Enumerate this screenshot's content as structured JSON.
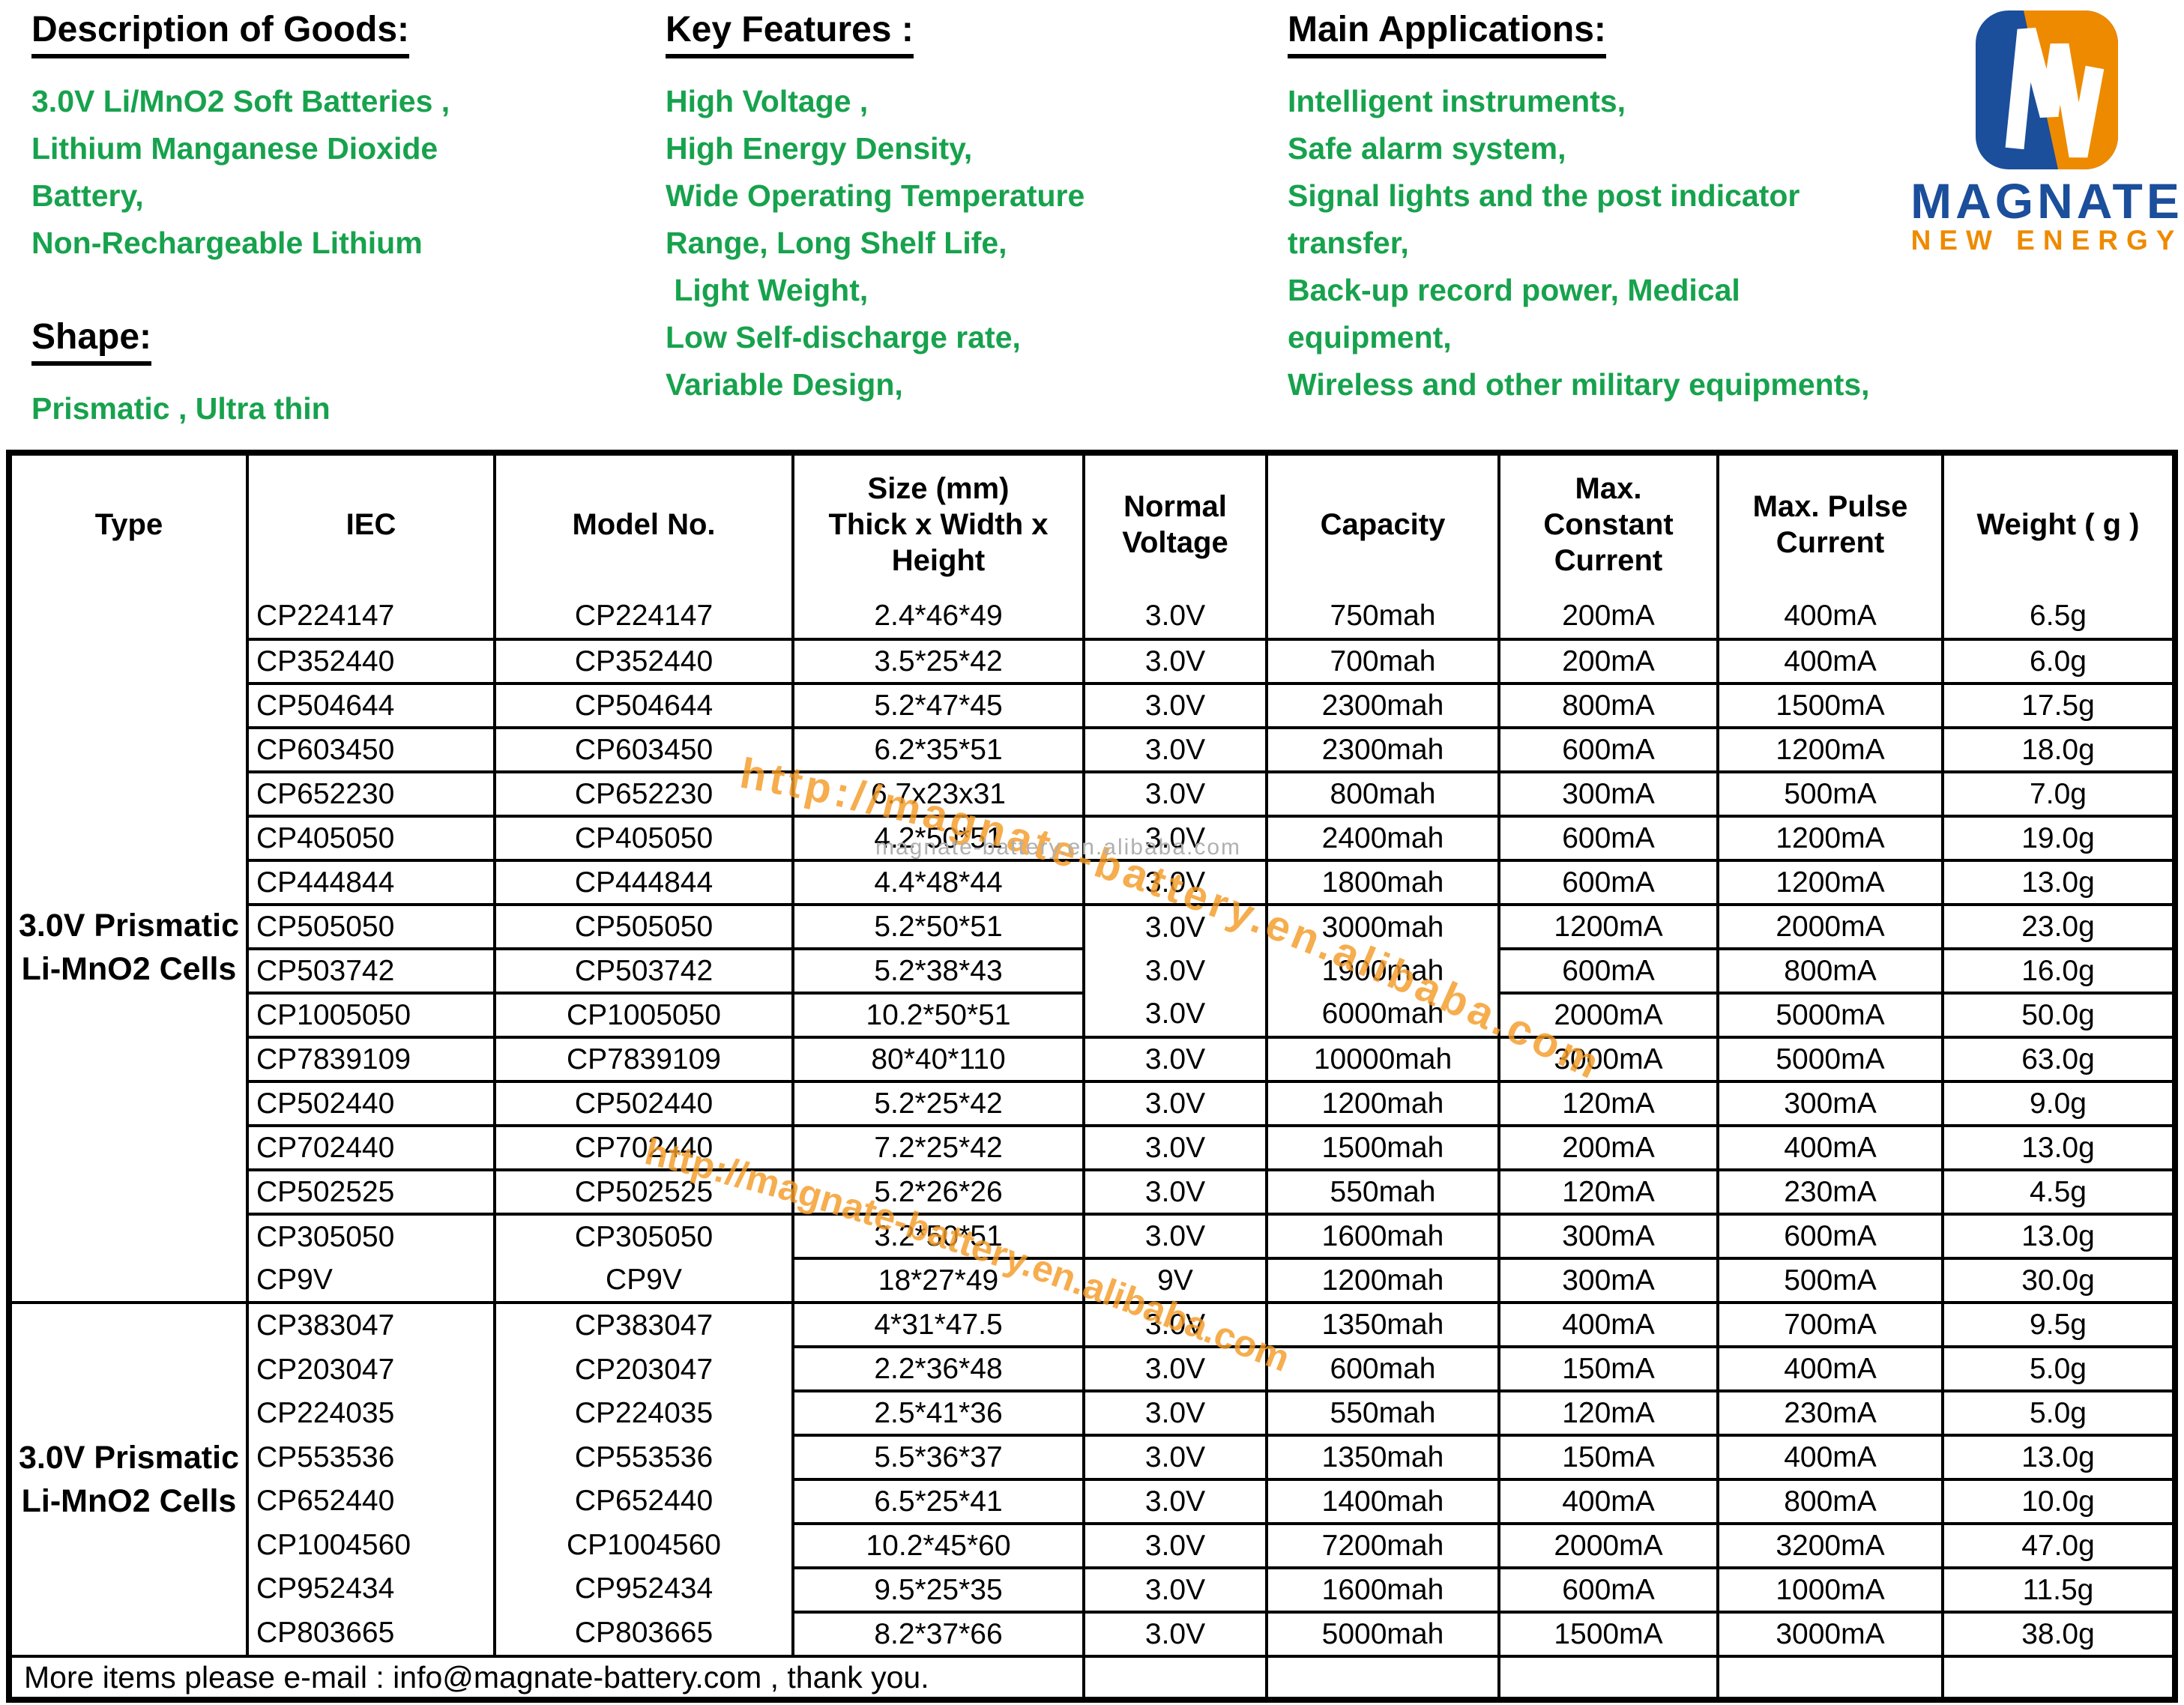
{
  "header": {
    "description": {
      "title": "Description of Goods:",
      "lines": [
        "3.0V Li/MnO2 Soft Batteries ,",
        "Lithium Manganese Dioxide",
        "Battery,",
        "Non-Rechargeable Lithium"
      ]
    },
    "shape": {
      "title": "Shape:",
      "lines": [
        "Prismatic , Ultra thin"
      ]
    },
    "features": {
      "title": "Key Features :",
      "lines": [
        "High Voltage ,",
        "High Energy Density,",
        "Wide Operating Temperature",
        "Range, Long Shelf Life,",
        " Light Weight,",
        "Low Self-discharge rate,",
        "Variable Design,"
      ]
    },
    "applications": {
      "title": "Main Applications:",
      "lines": [
        "Intelligent instruments,",
        "Safe alarm system,",
        "Signal lights and the post indicator",
        "transfer,",
        "Back-up record power, Medical",
        "equipment,",
        "Wireless and other military equipments,"
      ]
    },
    "logo": {
      "name": "MAGNATE",
      "subtitle": "NEW ENERGY",
      "monogram": "M",
      "colors": {
        "blue": "#1b4e9b",
        "orange": "#ee8a00"
      }
    }
  },
  "watermarks": {
    "orange_text": "http://magnate-battery.en.alibaba.com",
    "gray_text": "magnate-battery.en.alibaba.com",
    "orange_color": "#f59c28",
    "gray_color": "#b0b0b0"
  },
  "table": {
    "col_headers": [
      "Type",
      "IEC",
      "Model No.",
      "Size  (mm)\nThick x Width x\nHeight",
      "Normal\nVoltage",
      "Capacity",
      "Max.\nConstant\nCurrent",
      "Max. Pulse\nCurrent",
      "Weight ( g )"
    ],
    "groups": [
      {
        "type_label": "3.0V Prismatic\nLi-MnO2 Cells",
        "rows": [
          {
            "iec": "CP224147",
            "model": "CP224147",
            "size": "2.4*46*49",
            "voltage": "3.0V",
            "capacity": "750mah",
            "max_constant": "200mA",
            "max_pulse": "400mA",
            "weight": "6.5g"
          },
          {
            "iec": "CP352440",
            "model": "CP352440",
            "size": "3.5*25*42",
            "voltage": "3.0V",
            "capacity": "700mah",
            "max_constant": "200mA",
            "max_pulse": "400mA",
            "weight": "6.0g"
          },
          {
            "iec": "CP504644",
            "model": "CP504644",
            "size": "5.2*47*45",
            "voltage": "3.0V",
            "capacity": "2300mah",
            "max_constant": "800mA",
            "max_pulse": "1500mA",
            "weight": "17.5g"
          },
          {
            "iec": "CP603450",
            "model": "CP603450",
            "size": "6.2*35*51",
            "voltage": "3.0V",
            "capacity": "2300mah",
            "max_constant": "600mA",
            "max_pulse": "1200mA",
            "weight": "18.0g"
          },
          {
            "iec": "CP652230",
            "model": "CP652230",
            "size": "6.7x23x31",
            "voltage": "3.0V",
            "capacity": "800mah",
            "max_constant": "300mA",
            "max_pulse": "500mA",
            "weight": "7.0g"
          },
          {
            "iec": "CP405050",
            "model": "CP405050",
            "size": "4.2*50*51",
            "voltage": "3.0V",
            "capacity": "2400mah",
            "max_constant": "600mA",
            "max_pulse": "1200mA",
            "weight": "19.0g"
          },
          {
            "iec": "CP444844",
            "model": "CP444844",
            "size": "4.4*48*44",
            "voltage": "3.0V",
            "capacity": "1800mah",
            "max_constant": "600mA",
            "max_pulse": "1200mA",
            "weight": "13.0g"
          },
          {
            "iec": "CP505050",
            "model": "CP505050",
            "size": "5.2*50*51",
            "voltage": "3.0V",
            "capacity": "3000mah",
            "max_constant": "1200mA",
            "max_pulse": "2000mA",
            "weight": "23.0g"
          },
          {
            "iec": "CP503742",
            "model": "CP503742",
            "size": "5.2*38*43",
            "voltage": "3.0V",
            "capacity": "1900mah",
            "max_constant": "600mA",
            "max_pulse": "800mA",
            "weight": "16.0g"
          },
          {
            "iec": "CP1005050",
            "model": "CP1005050",
            "size": "10.2*50*51",
            "voltage": "3.0V",
            "capacity": "6000mah",
            "max_constant": "2000mA",
            "max_pulse": "5000mA",
            "weight": "50.0g"
          },
          {
            "iec": "CP7839109",
            "model": "CP7839109",
            "size": "80*40*110",
            "voltage": "3.0V",
            "capacity": "10000mah",
            "max_constant": "3000mA",
            "max_pulse": "5000mA",
            "weight": "63.0g"
          },
          {
            "iec": "CP502440",
            "model": "CP502440",
            "size": "5.2*25*42",
            "voltage": "3.0V",
            "capacity": "1200mah",
            "max_constant": "120mA",
            "max_pulse": "300mA",
            "weight": "9.0g"
          },
          {
            "iec": "CP702440",
            "model": "CP702440",
            "size": "7.2*25*42",
            "voltage": "3.0V",
            "capacity": "1500mah",
            "max_constant": "200mA",
            "max_pulse": "400mA",
            "weight": "13.0g"
          },
          {
            "iec": "CP502525",
            "model": "CP502525",
            "size": "5.2*26*26",
            "voltage": "3.0V",
            "capacity": "550mah",
            "max_constant": "120mA",
            "max_pulse": "230mA",
            "weight": "4.5g"
          },
          {
            "iec": "CP305050",
            "model": "CP305050",
            "size": "3.2*50*51",
            "voltage": "3.0V",
            "capacity": "1600mah",
            "max_constant": "300mA",
            "max_pulse": "600mA",
            "weight": "13.0g"
          },
          {
            "iec": "CP9V",
            "model": "CP9V",
            "size": "18*27*49",
            "voltage": "9V",
            "capacity": "1200mah",
            "max_constant": "300mA",
            "max_pulse": "500mA",
            "weight": "30.0g"
          }
        ]
      },
      {
        "type_label": "3.0V Prismatic\nLi-MnO2 Cells",
        "rows": [
          {
            "iec": "CP383047",
            "model": "CP383047",
            "size": "4*31*47.5",
            "voltage": "3.0V",
            "capacity": "1350mah",
            "max_constant": "400mA",
            "max_pulse": "700mA",
            "weight": "9.5g"
          },
          {
            "iec": "CP203047",
            "model": "CP203047",
            "size": "2.2*36*48",
            "voltage": "3.0V",
            "capacity": "600mah",
            "max_constant": "150mA",
            "max_pulse": "400mA",
            "weight": "5.0g"
          },
          {
            "iec": "CP224035",
            "model": "CP224035",
            "size": "2.5*41*36",
            "voltage": "3.0V",
            "capacity": "550mah",
            "max_constant": "120mA",
            "max_pulse": "230mA",
            "weight": "5.0g"
          },
          {
            "iec": "CP553536",
            "model": "CP553536",
            "size": "5.5*36*37",
            "voltage": "3.0V",
            "capacity": "1350mah",
            "max_constant": "150mA",
            "max_pulse": "400mA",
            "weight": "13.0g"
          },
          {
            "iec": "CP652440",
            "model": "CP652440",
            "size": "6.5*25*41",
            "voltage": "3.0V",
            "capacity": "1400mah",
            "max_constant": "400mA",
            "max_pulse": "800mA",
            "weight": "10.0g"
          },
          {
            "iec": "CP1004560",
            "model": "CP1004560",
            "size": "10.2*45*60",
            "voltage": "3.0V",
            "capacity": "7200mah",
            "max_constant": "2000mA",
            "max_pulse": "3200mA",
            "weight": "47.0g"
          },
          {
            "iec": "CP952434",
            "model": "CP952434",
            "size": "9.5*25*35",
            "voltage": "3.0V",
            "capacity": "1600mah",
            "max_constant": "600mA",
            "max_pulse": "1000mA",
            "weight": "11.5g"
          },
          {
            "iec": "CP803665",
            "model": "CP803665",
            "size": "8.2*37*66",
            "voltage": "3.0V",
            "capacity": "5000mah",
            "max_constant": "1500mA",
            "max_pulse": "3000mA",
            "weight": "38.0g"
          }
        ]
      }
    ],
    "footer_note": "More items please e-mail : info@magnate-battery.com , thank you."
  }
}
